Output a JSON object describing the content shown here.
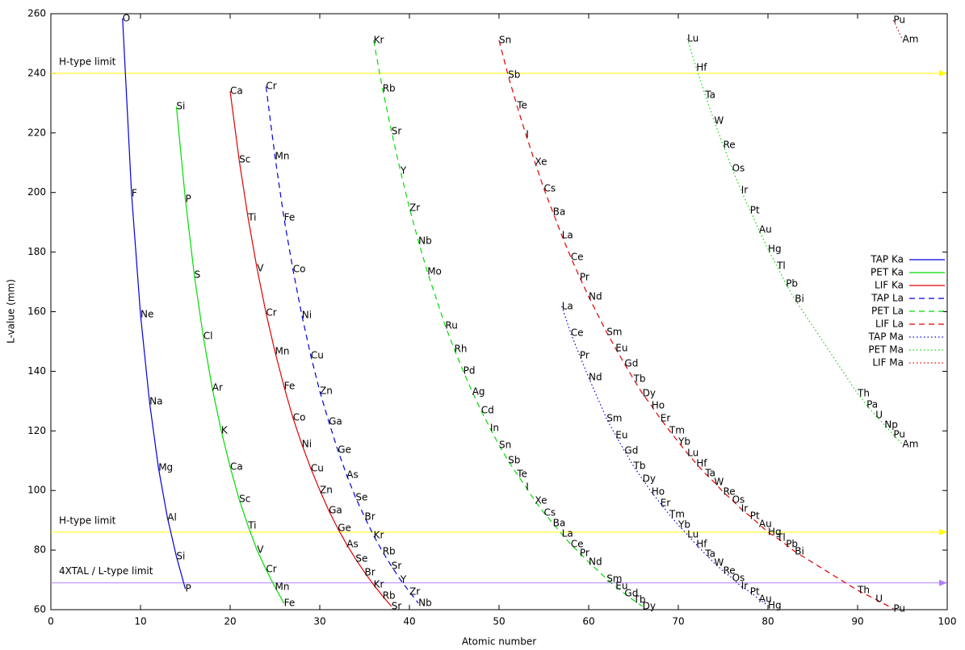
{
  "chart_data": {
    "type": "line",
    "x_label": "Atomic number",
    "y_label": "L-value (mm)",
    "xlim": [
      0,
      100
    ],
    "ylim": [
      60,
      260
    ],
    "xticks": [
      0,
      10,
      20,
      30,
      40,
      50,
      60,
      70,
      80,
      90,
      100
    ],
    "yticks": [
      60,
      80,
      100,
      120,
      140,
      160,
      180,
      200,
      220,
      240,
      260
    ],
    "legend": "right",
    "reference_lines": [
      {
        "label": "H-type limit",
        "value": 240,
        "color": "#ffff00"
      },
      {
        "label": "H-type limit",
        "value": 86,
        "color": "#ffff00"
      },
      {
        "label": "4XTAL / L-type limit",
        "value": 69,
        "color": "#b080ff"
      }
    ],
    "series": [
      {
        "name": "TAP Ka",
        "color": "#0000dd",
        "dash": "solid",
        "x": [
          8,
          9,
          10,
          11,
          12,
          13,
          14,
          15
        ],
        "values": [
          258.4,
          199.6,
          159,
          129.8,
          107.6,
          90.9,
          77.9,
          67
        ],
        "labels": [
          "O",
          "F",
          "Ne",
          "Na",
          "Mg",
          "Al",
          "Si",
          "P"
        ]
      },
      {
        "name": "PET Ka",
        "color": "#00dd00",
        "dash": "solid",
        "x": [
          14,
          15,
          16,
          17,
          18,
          19,
          20,
          21,
          22,
          23,
          24,
          25,
          26
        ],
        "values": [
          228.9,
          197.8,
          172.3,
          151.7,
          134.4,
          120.1,
          107.9,
          97.1,
          88.1,
          80,
          73.5,
          67.6,
          62.2
        ],
        "labels": [
          "Si",
          "P",
          "S",
          "Cl",
          "Ar",
          "K",
          "Ca",
          "Sc",
          "Ti",
          "V",
          "Cr",
          "Mn",
          "Fe"
        ]
      },
      {
        "name": "LIF Ka",
        "color": "#e00000",
        "dash": "solid",
        "x": [
          20,
          21,
          22,
          23,
          24,
          25,
          26,
          27,
          28,
          29,
          30,
          31,
          32,
          33,
          34,
          35,
          36,
          37,
          38
        ],
        "values": [
          234,
          211,
          191.5,
          174.5,
          159.6,
          146.6,
          135,
          124.4,
          115.5,
          107.4,
          100.1,
          93.3,
          87.3,
          81.9,
          77,
          72.5,
          68.4,
          64.6,
          61.1
        ],
        "labels": [
          "Ca",
          "Sc",
          "Ti",
          "V",
          "Cr",
          "Mn",
          "Fe",
          "Co",
          "Ni",
          "Cu",
          "Zn",
          "Ga",
          "Ge",
          "As",
          "Se",
          "Br",
          "Kr",
          "Rb",
          "Sr"
        ]
      },
      {
        "name": "TAP La",
        "color": "#0000dd",
        "dash": "dashed",
        "x": [
          24,
          25,
          26,
          27,
          28,
          29,
          30,
          31,
          32,
          33,
          34,
          35,
          36,
          37,
          38,
          39,
          40,
          41
        ],
        "values": [
          235.6,
          212.1,
          191.5,
          174.2,
          158.8,
          145.2,
          133.3,
          123.1,
          113.6,
          105.2,
          97.6,
          91.1,
          84.9,
          79.5,
          74.6,
          70,
          66,
          62.2
        ],
        "labels": [
          "Cr",
          "Mn",
          "Fe",
          "Co",
          "Ni",
          "Cu",
          "Zn",
          "Ga",
          "Ge",
          "As",
          "Se",
          "Br",
          "Kr",
          "Rb",
          "Sr",
          "Y",
          "Zr",
          "Nb"
        ]
      },
      {
        "name": "PET La",
        "color": "#00dd00",
        "dash": "dashed",
        "x": [
          36,
          37,
          38,
          39,
          40,
          41,
          42,
          44,
          45,
          46,
          47,
          48,
          49,
          50,
          51,
          52,
          53,
          54,
          55,
          56,
          57,
          58,
          59,
          60,
          62,
          63,
          64,
          65,
          66
        ],
        "values": [
          251.1,
          234.8,
          220.5,
          207.2,
          194.8,
          183.7,
          173.4,
          155.3,
          147.4,
          140.1,
          133.1,
          126.8,
          120.9,
          115.2,
          110.1,
          105.5,
          101.1,
          96.5,
          92.5,
          89,
          85.4,
          81.9,
          79,
          76,
          70.3,
          67.8,
          65.4,
          63.2,
          61.1
        ],
        "labels": [
          "Kr",
          "Rb",
          "Sr",
          "Y",
          "Zr",
          "Nb",
          "Mo",
          "Ru",
          "Rh",
          "Pd",
          "Ag",
          "Cd",
          "In",
          "Sn",
          "Sb",
          "Te",
          "I",
          "Xe",
          "Cs",
          "Ba",
          "La",
          "Ce",
          "Pr",
          "Nd",
          "Sm",
          "Eu",
          "Gd",
          "Tb",
          "Dy"
        ]
      },
      {
        "name": "LIF La",
        "color": "#e00000",
        "dash": "dashed",
        "x": [
          50,
          51,
          52,
          53,
          54,
          55,
          56,
          57,
          58,
          59,
          60,
          62,
          63,
          64,
          65,
          66,
          67,
          68,
          69,
          70,
          71,
          72,
          73,
          74,
          75,
          76,
          77,
          78,
          79,
          80,
          81,
          82,
          83,
          90,
          92,
          94
        ],
        "values": [
          251.1,
          239.4,
          229.1,
          219.4,
          210.2,
          201.3,
          193.4,
          185.6,
          178.3,
          171.5,
          165,
          153.1,
          147.7,
          142.5,
          137.4,
          132.5,
          128.5,
          124.1,
          120.1,
          116.3,
          112.5,
          109,
          105.7,
          102.8,
          99.5,
          96.8,
          93.8,
          91.4,
          88.7,
          86,
          84.1,
          81.9,
          79.5,
          66.5,
          63.5,
          60.3
        ],
        "labels": [
          "Sn",
          "Sb",
          "Te",
          "I",
          "Xe",
          "Cs",
          "Ba",
          "La",
          "Ce",
          "Pr",
          "Nd",
          "Sm",
          "Eu",
          "Gd",
          "Tb",
          "Dy",
          "Ho",
          "Er",
          "Tm",
          "Yb",
          "Lu",
          "Hf",
          "Ta",
          "W",
          "Re",
          "Os",
          "Ir",
          "Pt",
          "Au",
          "Hg",
          "Tl",
          "Pb",
          "Bi",
          "Th",
          "U",
          "Pu"
        ]
      },
      {
        "name": "TAP Ma",
        "color": "#0000dd",
        "dash": "dotted",
        "x": [
          57,
          58,
          59,
          60,
          62,
          63,
          64,
          65,
          66,
          67,
          68,
          69,
          70,
          71,
          72,
          73,
          74,
          75,
          76,
          77,
          78,
          79,
          80
        ],
        "values": [
          161.8,
          152.8,
          145.2,
          137.9,
          124.1,
          118.5,
          113.3,
          108.2,
          103.8,
          99.5,
          95.7,
          91.9,
          88.4,
          85.2,
          81.9,
          78.7,
          75.7,
          73,
          70.6,
          67.8,
          66,
          63.5,
          61.4
        ],
        "labels": [
          "La",
          "Ce",
          "Pr",
          "Nd",
          "Sm",
          "Eu",
          "Gd",
          "Tb",
          "Dy",
          "Ho",
          "Er",
          "Tm",
          "Yb",
          "Lu",
          "Hf",
          "Ta",
          "W",
          "Re",
          "Os",
          "Ir",
          "Pt",
          "Au",
          "Hg"
        ]
      },
      {
        "name": "PET Ma",
        "color": "#00dd00",
        "dash": "dotted",
        "x": [
          71,
          72,
          73,
          74,
          75,
          76,
          77,
          78,
          79,
          80,
          81,
          82,
          83,
          90,
          91,
          92,
          93,
          94,
          95
        ],
        "values": [
          251.6,
          241.9,
          232.7,
          224,
          215.9,
          208,
          200.7,
          194,
          187.5,
          181,
          175.3,
          169.3,
          164.2,
          132.5,
          128.7,
          125.2,
          122,
          118.7,
          115.5
        ],
        "labels": [
          "Lu",
          "Hf",
          "Ta",
          "W",
          "Re",
          "Os",
          "Ir",
          "Pt",
          "Au",
          "Hg",
          "Tl",
          "Pb",
          "Bi",
          "Th",
          "Pa",
          "U",
          "Np",
          "Pu",
          "Am"
        ]
      },
      {
        "name": "LIF Ma",
        "color": "#e00000",
        "dash": "dotted",
        "x": [
          94,
          95
        ],
        "values": [
          257.8,
          251.3
        ],
        "labels": [
          "Pu",
          "Am"
        ]
      }
    ]
  }
}
